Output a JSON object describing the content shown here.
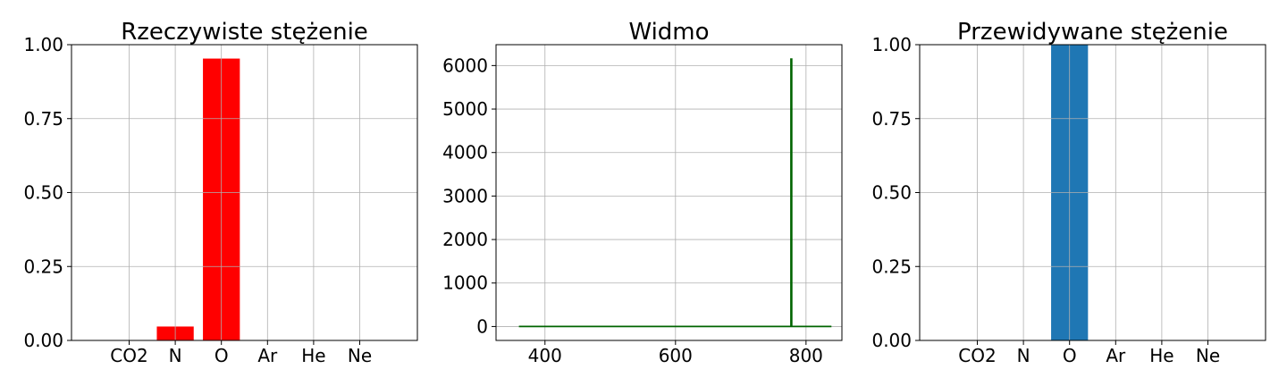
{
  "chart_data": [
    {
      "type": "bar",
      "title": "Rzeczywiste stężenie",
      "categories": [
        "CO2",
        "N",
        "O",
        "Ar",
        "He",
        "Ne"
      ],
      "values": [
        0,
        0.047,
        0.953,
        0,
        0,
        0
      ],
      "ylim": [
        0,
        1
      ],
      "yticks": [
        0,
        0.25,
        0.5,
        0.75,
        1
      ],
      "ytick_labels": [
        "0.00",
        "0.25",
        "0.50",
        "0.75",
        "1.00"
      ],
      "color": "#ff0000",
      "grid": true
    },
    {
      "type": "line",
      "title": "Widmo",
      "series": [
        {
          "x": [
            360,
            777,
            777,
            778,
            778,
            839
          ],
          "y": [
            0,
            0,
            6150,
            6150,
            0,
            0
          ],
          "color": "#006400"
        }
      ],
      "xlim": [
        325,
        855
      ],
      "ylim": [
        -320,
        6480
      ],
      "xticks": [
        400,
        600,
        800
      ],
      "yticks": [
        0,
        1000,
        2000,
        3000,
        4000,
        5000,
        6000
      ],
      "grid": true
    },
    {
      "type": "bar",
      "title": "Przewidywane stężenie",
      "categories": [
        "CO2",
        "N",
        "O",
        "Ar",
        "He",
        "Ne"
      ],
      "values": [
        0,
        0,
        1.0,
        0,
        0,
        0
      ],
      "ylim": [
        0,
        1
      ],
      "yticks": [
        0,
        0.25,
        0.5,
        0.75,
        1
      ],
      "ytick_labels": [
        "0.00",
        "0.25",
        "0.50",
        "0.75",
        "1.00"
      ],
      "color": "#1f77b4",
      "grid": true
    }
  ]
}
